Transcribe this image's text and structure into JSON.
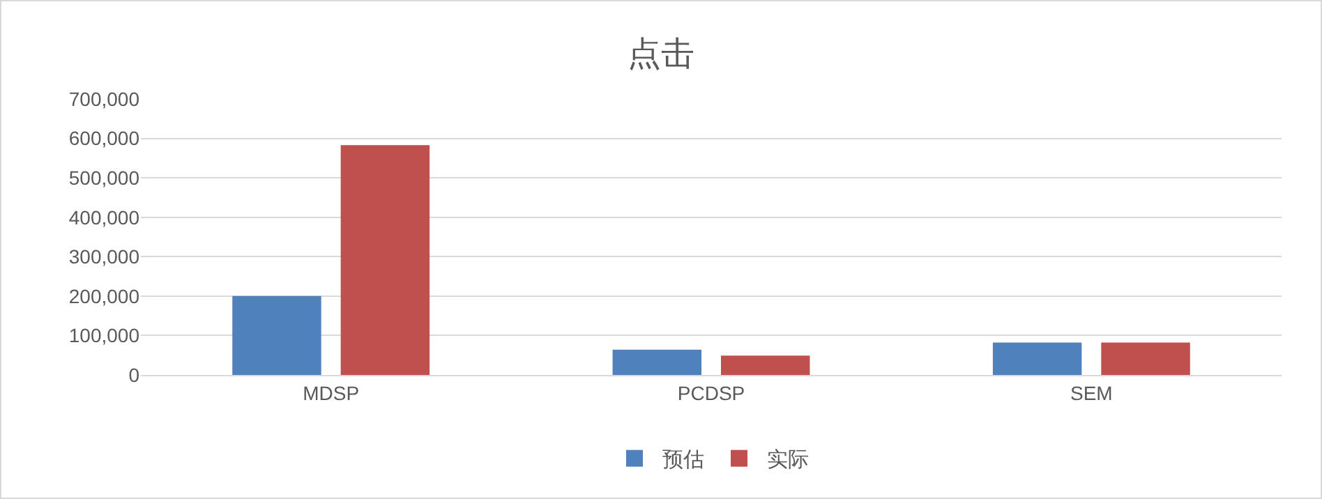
{
  "chart_data": {
    "type": "bar",
    "title": "点击",
    "categories": [
      "MDSP",
      "PCDSP",
      "SEM"
    ],
    "series": [
      {
        "name": "预估",
        "color": "#4f81bd",
        "values": [
          200000,
          64000,
          82000
        ]
      },
      {
        "name": "实际",
        "color": "#c0504d",
        "values": [
          583000,
          49000,
          82000
        ]
      }
    ],
    "ylim": [
      0,
      700000
    ],
    "yticks": [
      0,
      {
        "value": 100000,
        "label": "100,000"
      },
      {
        "value": 200000,
        "label": "200,000"
      },
      {
        "value": 300000,
        "label": "300,000"
      },
      {
        "value": 400000,
        "label": "400,000"
      },
      {
        "value": 500000,
        "label": "500,000"
      },
      {
        "value": 600000,
        "label": "600,000"
      },
      {
        "value": 700000,
        "label": "700,000"
      }
    ],
    "grid": "y",
    "legend": "bottom"
  }
}
